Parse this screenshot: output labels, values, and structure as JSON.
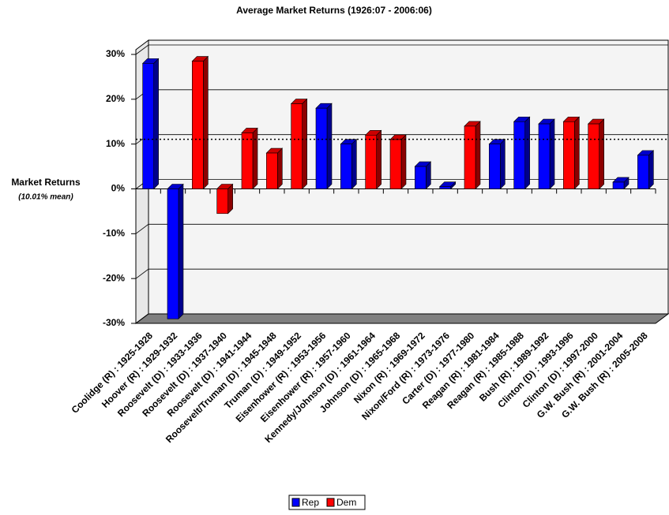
{
  "chart_data": {
    "type": "bar3d",
    "title": "Average Market Returns (1926:07 - 2006:06)",
    "y_label": "Market Returns",
    "y_sublabel": "(10.01% mean)",
    "mean": 10.01,
    "categories": [
      "Coolidge (R) : 1925-1928",
      "Hoover (R) : 1929-1932",
      "Roosevelt (D) : 1933-1936",
      "Roosevelt (D) : 1937-1940",
      "Roosevelt (D) : 1941-1944",
      "Roosevelt/Truman (D) : 1945-1948",
      "Truman (D) : 1949-1952",
      "Eisenhower (R) : 1953-1956",
      "Eisenhower (R) : 1957-1960",
      "Kennedy/Johnson (D) : 1961-1964",
      "Johnson (D) : 1965-1968",
      "Nixon (R) : 1969-1972",
      "Nixon/Ford (R) : 1973-1976",
      "Carter (D) : 1977-1980",
      "Reagan (R) : 1981-1984",
      "Reagan (R) : 1985-1988",
      "Bush (R) : 1989-1992",
      "Clinton (D) : 1993-1996",
      "Clinton (D) : 1997-2000",
      "G.W. Bush (R) : 2001-2004",
      "G.W. Bush (R) : 2005-2008"
    ],
    "series": [
      {
        "name": "Rep",
        "color": "#0000ff",
        "values": [
          28,
          -29,
          null,
          null,
          null,
          null,
          null,
          18,
          10,
          null,
          null,
          5,
          0.5,
          null,
          10,
          15,
          14.5,
          null,
          null,
          1.5,
          7.5
        ]
      },
      {
        "name": "Dem",
        "color": "#ff0000",
        "values": [
          null,
          null,
          28.5,
          -5.5,
          12.5,
          8,
          19,
          null,
          null,
          12,
          11,
          null,
          null,
          14,
          null,
          null,
          null,
          15,
          14.5,
          null,
          null
        ]
      }
    ],
    "ylim": [
      -30,
      30
    ],
    "yticks": [
      {
        "value": -30,
        "label": "-30%"
      },
      {
        "value": -20,
        "label": "-20%"
      },
      {
        "value": -10,
        "label": "-10%"
      },
      {
        "value": 0,
        "label": "0%"
      },
      {
        "value": 10,
        "label": "10%"
      },
      {
        "value": 20,
        "label": "20%"
      },
      {
        "value": 30,
        "label": "30%"
      }
    ],
    "grid": true
  }
}
